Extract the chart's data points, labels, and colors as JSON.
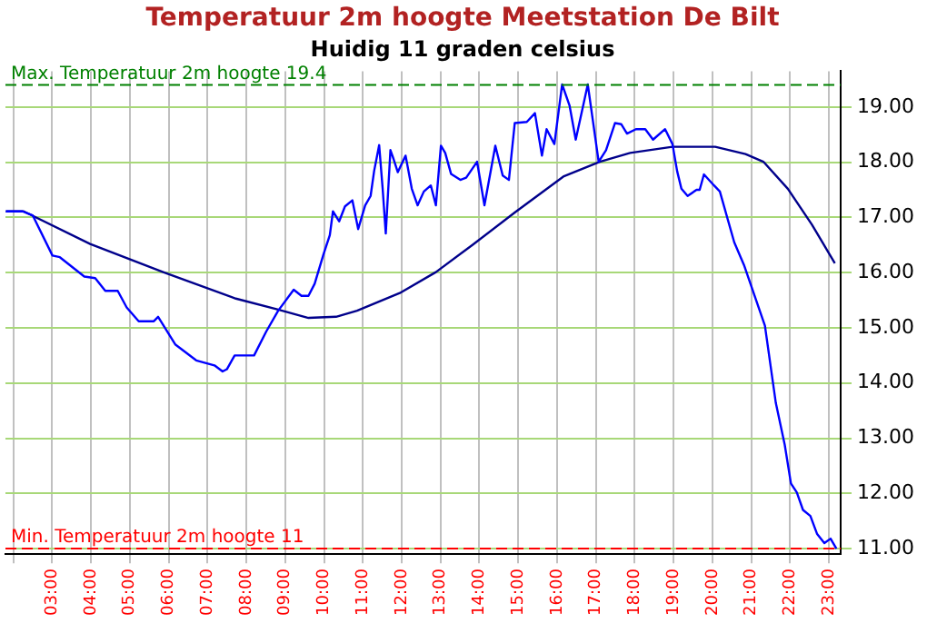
{
  "chart_data": {
    "type": "line",
    "title": "Temperatuur 2m hoogte Meetstation De Bilt",
    "subtitle": "Huidig 11 graden celsius",
    "xlim": [
      1.8,
      23.3
    ],
    "ylim": [
      10.9,
      19.65
    ],
    "xticks": [
      {
        "value": 2,
        "label": null
      },
      {
        "value": 3,
        "label": "03:00"
      },
      {
        "value": 4,
        "label": "04:00"
      },
      {
        "value": 5,
        "label": "05:00"
      },
      {
        "value": 6,
        "label": "06:00"
      },
      {
        "value": 7,
        "label": "07:00"
      },
      {
        "value": 8,
        "label": "08:00"
      },
      {
        "value": 9,
        "label": "09:00"
      },
      {
        "value": 10,
        "label": "10:00"
      },
      {
        "value": 11,
        "label": "11:00"
      },
      {
        "value": 12,
        "label": "12:00"
      },
      {
        "value": 13,
        "label": "13:00"
      },
      {
        "value": 14,
        "label": "14:00"
      },
      {
        "value": 15,
        "label": "15:00"
      },
      {
        "value": 16,
        "label": "16:00"
      },
      {
        "value": 17,
        "label": "17:00"
      },
      {
        "value": 18,
        "label": "18:00"
      },
      {
        "value": 19,
        "label": "19:00"
      },
      {
        "value": 20,
        "label": "20:00"
      },
      {
        "value": 21,
        "label": "21:00"
      },
      {
        "value": 22,
        "label": "22:00"
      },
      {
        "value": 23,
        "label": "23:00"
      }
    ],
    "yticks": [
      {
        "value": 11,
        "label": "11.00"
      },
      {
        "value": 12,
        "label": "12.00"
      },
      {
        "value": 13,
        "label": "13.00"
      },
      {
        "value": 14,
        "label": "14.00"
      },
      {
        "value": 15,
        "label": "15.00"
      },
      {
        "value": 16,
        "label": "16.00"
      },
      {
        "value": 17,
        "label": "17.00"
      },
      {
        "value": 18,
        "label": "18.00"
      },
      {
        "value": 19,
        "label": "19.00"
      }
    ],
    "grid": true,
    "legend": false,
    "marker": "none",
    "line_style": "solid",
    "ref_lines": [
      {
        "axis": "y",
        "value": 19.4,
        "label": "Max. Temperatuur 2m hoogte 19.4",
        "color": "#008000",
        "line_style": "dashed"
      },
      {
        "axis": "y",
        "value": 11,
        "label": "Min. Temperatuur 2m hoogte 11",
        "color": "#ff0000",
        "line_style": "dashed"
      }
    ],
    "series": [
      {
        "color": "#0000ff",
        "x": [
          1.81,
          2.24,
          2.5,
          3.01,
          3.2,
          3.83,
          4.11,
          4.37,
          4.69,
          4.92,
          5.23,
          5.62,
          5.73,
          6.17,
          6.71,
          7.18,
          7.39,
          7.5,
          7.7,
          8.2,
          8.51,
          8.82,
          9.22,
          9.42,
          9.6,
          9.76,
          9.99,
          10.15,
          10.23,
          10.39,
          10.54,
          10.73,
          10.88,
          11.06,
          11.2,
          11.29,
          11.42,
          11.51,
          11.59,
          11.71,
          11.79,
          11.9,
          12.1,
          12.26,
          12.41,
          12.57,
          12.75,
          12.88,
          13.01,
          13.12,
          13.27,
          13.51,
          13.66,
          13.94,
          14.13,
          14.41,
          14.6,
          14.76,
          14.91,
          15.22,
          15.43,
          15.61,
          15.73,
          15.93,
          16.13,
          16.32,
          16.48,
          16.79,
          17.07,
          17.26,
          17.49,
          17.65,
          17.8,
          18.03,
          18.27,
          18.47,
          18.78,
          18.97,
          19.09,
          19.2,
          19.36,
          19.59,
          19.67,
          19.78,
          20.04,
          20.19,
          20.56,
          20.81,
          21.35,
          21.63,
          21.86,
          22.02,
          22.17,
          22.33,
          22.52,
          22.69,
          22.88,
          23.04,
          23.19
        ],
        "values": [
          17.11,
          17.11,
          17.04,
          16.31,
          16.28,
          15.93,
          15.9,
          15.67,
          15.67,
          15.37,
          15.12,
          15.12,
          15.2,
          14.7,
          14.41,
          14.32,
          14.21,
          14.25,
          14.5,
          14.5,
          14.93,
          15.31,
          15.69,
          15.58,
          15.58,
          15.8,
          16.34,
          16.68,
          17.11,
          16.93,
          17.2,
          17.31,
          16.79,
          17.22,
          17.39,
          17.84,
          18.31,
          17.52,
          16.71,
          18.22,
          18.06,
          17.82,
          18.12,
          17.52,
          17.22,
          17.47,
          17.58,
          17.22,
          18.3,
          18.17,
          17.79,
          17.68,
          17.72,
          18.01,
          17.22,
          18.3,
          17.76,
          17.68,
          18.71,
          18.73,
          18.89,
          18.12,
          18.6,
          18.33,
          19.41,
          19.03,
          18.41,
          19.41,
          18.01,
          18.22,
          18.71,
          18.69,
          18.52,
          18.6,
          18.6,
          18.41,
          18.6,
          18.33,
          17.84,
          17.52,
          17.39,
          17.5,
          17.5,
          17.78,
          17.58,
          17.47,
          16.55,
          16.14,
          15.04,
          13.64,
          12.88,
          12.18,
          12.02,
          11.7,
          11.59,
          11.27,
          11.1,
          11.18,
          11.0
        ]
      },
      {
        "color": "#00008b",
        "x": [
          1.81,
          2.27,
          3.98,
          5.86,
          7.73,
          8.82,
          9.6,
          10.31,
          10.85,
          11.95,
          12.88,
          13.82,
          14.91,
          16.16,
          17.1,
          17.88,
          18.97,
          20.07,
          20.85,
          21.31,
          21.94,
          22.56,
          23.15
        ],
        "values": [
          17.11,
          17.11,
          16.52,
          16.01,
          15.53,
          15.33,
          15.18,
          15.2,
          15.31,
          15.63,
          16.01,
          16.5,
          17.09,
          17.74,
          18.01,
          18.17,
          18.28,
          18.28,
          18.15,
          18.01,
          17.52,
          16.87,
          16.17
        ]
      }
    ]
  }
}
